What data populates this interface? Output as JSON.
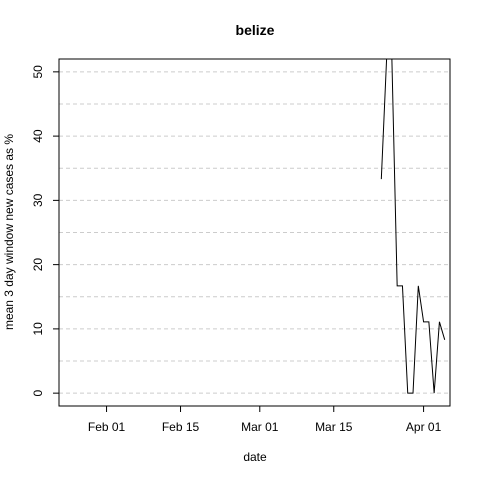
{
  "chart_data": {
    "type": "line",
    "title": "belize",
    "xlabel": "date",
    "ylabel": "mean  3  day window new cases as %",
    "x_ticks": [
      {
        "label": "Feb 01",
        "date": "2020-02-01"
      },
      {
        "label": "Feb 15",
        "date": "2020-02-15"
      },
      {
        "label": "Mar 01",
        "date": "2020-03-01"
      },
      {
        "label": "Mar 15",
        "date": "2020-03-15"
      },
      {
        "label": "Apr 01",
        "date": "2020-04-01"
      }
    ],
    "y_ticks": [
      0,
      10,
      20,
      30,
      40,
      50
    ],
    "xlim": [
      "2020-01-23",
      "2020-04-06"
    ],
    "ylim": [
      -2,
      52
    ],
    "grid": "horizontal dashed",
    "line_color": "#000000",
    "grid_color": "#cccccc",
    "series": [
      {
        "points": [
          {
            "x": "2020-03-24",
            "y": 33.3
          },
          {
            "x": "2020-03-25",
            "y": 52.0
          },
          {
            "x": "2020-03-26",
            "y": 52.0
          },
          {
            "x": "2020-03-27",
            "y": 16.7
          },
          {
            "x": "2020-03-28",
            "y": 16.7
          },
          {
            "x": "2020-03-29",
            "y": 0
          },
          {
            "x": "2020-03-30",
            "y": 0
          },
          {
            "x": "2020-03-31",
            "y": 16.7
          },
          {
            "x": "2020-04-01",
            "y": 11.1
          },
          {
            "x": "2020-04-02",
            "y": 11.1
          },
          {
            "x": "2020-04-03",
            "y": 0
          },
          {
            "x": "2020-04-04",
            "y": 11.1
          },
          {
            "x": "2020-04-05",
            "y": 8.3
          }
        ]
      }
    ]
  }
}
